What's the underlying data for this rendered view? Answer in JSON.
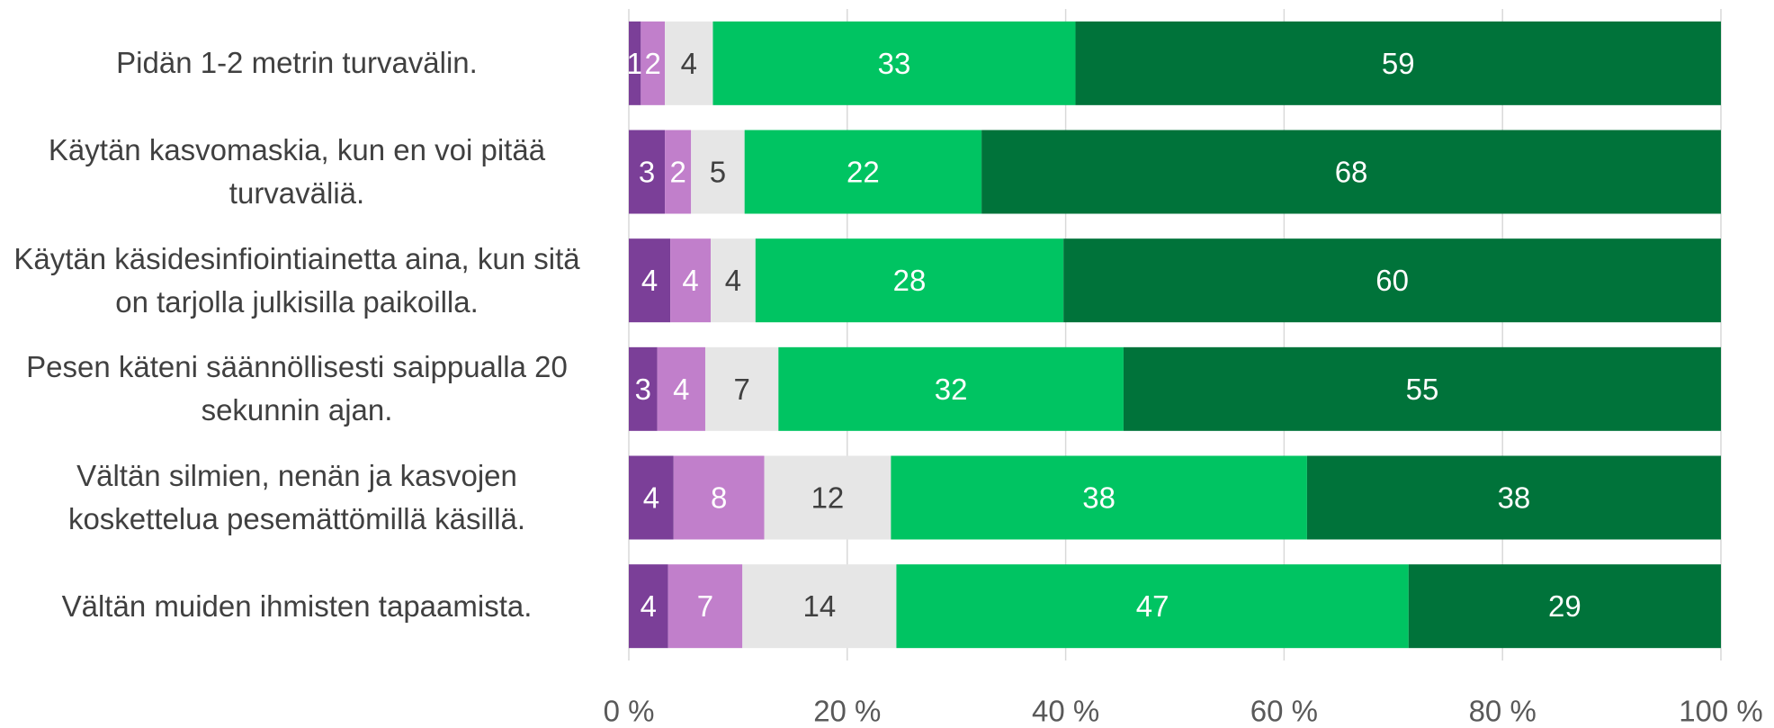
{
  "chart_data": {
    "type": "bar",
    "orientation": "horizontal",
    "stacked": true,
    "categories": [
      "Pidän 1-2 metrin turvavälin.",
      "Käytän kasvomaskia, kun en voi pitää turvaväliä.",
      "Käytän käsidesinfiointiainetta aina, kun sitä on tarjolla julkisilla paikoilla.",
      "Pesen käteni säännöllisesti saippualla 20 sekunnin ajan.",
      "Vältän silmien, nenän ja kasvojen koskettelua pesemättömillä käsillä.",
      "Vältän muiden ihmisten tapaamista."
    ],
    "series": [
      {
        "color": "#7b3f98",
        "label_color": "#ffffff",
        "values": [
          1.1,
          3.3,
          3.8,
          2.6,
          4.1,
          3.6
        ],
        "value_labels": [
          "1",
          "3",
          "4",
          "3",
          "4",
          "4"
        ]
      },
      {
        "color": "#c17fcb",
        "label_color": "#ffffff",
        "values": [
          2.2,
          2.4,
          3.7,
          4.4,
          8.3,
          6.8
        ],
        "value_labels": [
          "2",
          "2",
          "4",
          "4",
          "8",
          "7"
        ]
      },
      {
        "color": "#e6e6e6",
        "label_color": "#404040",
        "values": [
          4.4,
          4.9,
          4.1,
          6.7,
          11.6,
          14.1
        ],
        "value_labels": [
          "4",
          "5",
          "4",
          "7",
          "12",
          "14"
        ]
      },
      {
        "color": "#00c462",
        "label_color": "#ffffff",
        "values": [
          33.2,
          21.7,
          28.2,
          31.6,
          38.1,
          46.9
        ],
        "value_labels": [
          "33",
          "22",
          "28",
          "32",
          "38",
          "47"
        ]
      },
      {
        "color": "#00733a",
        "label_color": "#ffffff",
        "values": [
          59.1,
          67.7,
          60.2,
          54.7,
          37.9,
          28.6
        ],
        "value_labels": [
          "59",
          "68",
          "60",
          "55",
          "38",
          "29"
        ]
      }
    ],
    "xlim": [
      0,
      100
    ],
    "xticks": [
      {
        "value": 0,
        "label": "0 %"
      },
      {
        "value": 20,
        "label": "20 %"
      },
      {
        "value": 40,
        "label": "40 %"
      },
      {
        "value": 60,
        "label": "60 %"
      },
      {
        "value": 80,
        "label": "80 %"
      },
      {
        "value": 100,
        "label": "100 %"
      }
    ],
    "grid": true
  }
}
